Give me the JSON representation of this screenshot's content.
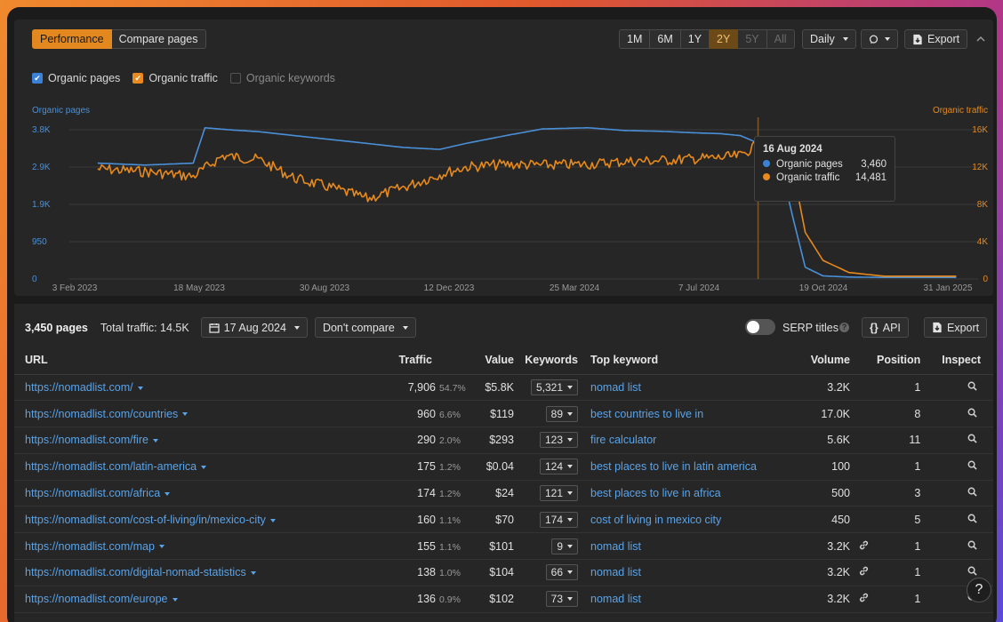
{
  "tabs": [
    "Performance",
    "Compare pages"
  ],
  "periods": [
    "1M",
    "6M",
    "1Y",
    "2Y",
    "5Y",
    "All"
  ],
  "granularity": "Daily",
  "export_label": "Export",
  "checks": [
    {
      "label": "Organic pages",
      "checked": true
    },
    {
      "label": "Organic traffic",
      "checked": true
    },
    {
      "label": "Organic keywords",
      "checked": false
    }
  ],
  "chart_data": {
    "type": "line",
    "left_axis_title": "Organic pages",
    "right_axis_title": "Organic traffic",
    "left_ticks": [
      "0",
      "950",
      "1.9K",
      "2.9K",
      "3.8K"
    ],
    "right_ticks": [
      "0",
      "4K",
      "8K",
      "12K",
      "16K"
    ],
    "x_ticks": [
      "3 Feb 2023",
      "18 May 2023",
      "30 Aug 2023",
      "12 Dec 2023",
      "25 Mar 2024",
      "7 Jul 2024",
      "19 Oct 2024",
      "31 Jan 2025"
    ],
    "left_ylim": [
      0,
      3800
    ],
    "right_ylim": [
      0,
      16000
    ],
    "series": [
      {
        "name": "Organic pages",
        "color": "#4a90d9",
        "x": [
          "2023-02-03",
          "2023-03-15",
          "2023-04-25",
          "2023-05-05",
          "2023-05-25",
          "2023-06-20",
          "2023-07-20",
          "2023-08-20",
          "2023-09-20",
          "2023-10-20",
          "2023-11-20",
          "2023-12-12",
          "2024-01-15",
          "2024-02-15",
          "2024-03-25",
          "2024-04-25",
          "2024-05-25",
          "2024-06-25",
          "2024-07-15",
          "2024-08-01",
          "2024-08-16",
          "2024-09-01",
          "2024-09-15",
          "2024-09-25",
          "2024-10-10",
          "2024-11-01",
          "2024-12-01",
          "2025-01-31"
        ],
        "values": [
          2950,
          2900,
          2950,
          3850,
          3800,
          3750,
          3650,
          3550,
          3450,
          3350,
          3300,
          3450,
          3650,
          3820,
          3850,
          3780,
          3760,
          3720,
          3700,
          3650,
          3460,
          3300,
          1500,
          300,
          80,
          50,
          40,
          40
        ]
      },
      {
        "name": "Organic traffic",
        "color": "#e8891c",
        "x": [
          "2023-02-03",
          "2023-03-15",
          "2023-04-25",
          "2023-05-20",
          "2023-06-20",
          "2023-07-20",
          "2023-08-20",
          "2023-09-20",
          "2023-10-20",
          "2023-11-20",
          "2023-12-12",
          "2024-01-15",
          "2024-02-15",
          "2024-03-25",
          "2024-04-25",
          "2024-05-25",
          "2024-06-25",
          "2024-07-15",
          "2024-08-01",
          "2024-08-16",
          "2024-08-25",
          "2024-09-05",
          "2024-09-15",
          "2024-09-25",
          "2024-10-10",
          "2024-11-01",
          "2024-12-01",
          "2025-01-31"
        ],
        "values": [
          11800,
          11500,
          11000,
          13200,
          12800,
          10800,
          9800,
          8600,
          9800,
          11200,
          12000,
          12300,
          12200,
          12300,
          12600,
          12700,
          12900,
          13000,
          13200,
          14481,
          14500,
          13800,
          11500,
          5000,
          2000,
          700,
          300,
          300
        ]
      }
    ]
  },
  "tooltip": {
    "date": "16 Aug 2024",
    "rows": [
      {
        "label": "Organic pages",
        "value": "3,460",
        "color": "#3b82d6"
      },
      {
        "label": "Organic traffic",
        "value": "14,481",
        "color": "#e88a1f"
      }
    ]
  },
  "summary": {
    "pages": "3,450 pages",
    "traffic": "Total traffic: 14.5K",
    "date": "17 Aug 2024",
    "compare": "Don't compare",
    "serp_titles": "SERP titles",
    "api": "API",
    "export": "Export"
  },
  "table": {
    "headers": [
      "URL",
      "Traffic",
      "Value",
      "Keywords",
      "Top keyword",
      "Volume",
      "Position",
      "Inspect"
    ],
    "rows": [
      {
        "url": "https://nomadlist.com/",
        "traffic": "7,906",
        "pct": "54.7%",
        "value": "$5.8K",
        "keywords": "5,321",
        "top": "nomad list",
        "volume": "3.2K",
        "link": false,
        "position": "1"
      },
      {
        "url": "https://nomadlist.com/countries",
        "traffic": "960",
        "pct": "6.6%",
        "value": "$119",
        "keywords": "89",
        "top": "best countries to live in",
        "volume": "17.0K",
        "link": false,
        "position": "8"
      },
      {
        "url": "https://nomadlist.com/fire",
        "traffic": "290",
        "pct": "2.0%",
        "value": "$293",
        "keywords": "123",
        "top": "fire calculator",
        "volume": "5.6K",
        "link": false,
        "position": "11"
      },
      {
        "url": "https://nomadlist.com/latin-america",
        "traffic": "175",
        "pct": "1.2%",
        "value": "$0.04",
        "keywords": "124",
        "top": "best places to live in latin america",
        "volume": "100",
        "link": false,
        "position": "1"
      },
      {
        "url": "https://nomadlist.com/africa",
        "traffic": "174",
        "pct": "1.2%",
        "value": "$24",
        "keywords": "121",
        "top": "best places to live in africa",
        "volume": "500",
        "link": false,
        "position": "3"
      },
      {
        "url": "https://nomadlist.com/cost-of-living/in/mexico-city",
        "traffic": "160",
        "pct": "1.1%",
        "value": "$70",
        "keywords": "174",
        "top": "cost of living in mexico city",
        "volume": "450",
        "link": false,
        "position": "5"
      },
      {
        "url": "https://nomadlist.com/map",
        "traffic": "155",
        "pct": "1.1%",
        "value": "$101",
        "keywords": "9",
        "top": "nomad list",
        "volume": "3.2K",
        "link": true,
        "position": "1"
      },
      {
        "url": "https://nomadlist.com/digital-nomad-statistics",
        "traffic": "138",
        "pct": "1.0%",
        "value": "$104",
        "keywords": "66",
        "top": "nomad list",
        "volume": "3.2K",
        "link": true,
        "position": "1"
      },
      {
        "url": "https://nomadlist.com/europe",
        "traffic": "136",
        "pct": "0.9%",
        "value": "$102",
        "keywords": "73",
        "top": "nomad list",
        "volume": "3.2K",
        "link": true,
        "position": "1"
      }
    ]
  },
  "help_label": "?"
}
